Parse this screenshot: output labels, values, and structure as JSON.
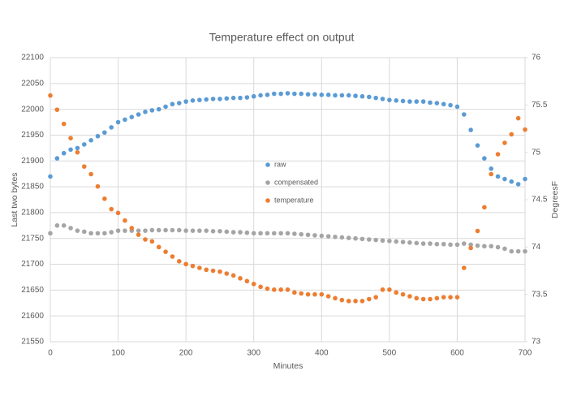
{
  "chart_data": {
    "type": "scatter",
    "title": "Temperature effect on output",
    "x_label": "Minutes",
    "y_label": "Last two bytes",
    "y2_label": "DegreesF",
    "legend": "center",
    "grid": true,
    "xlim": [
      0,
      700
    ],
    "xticks": [
      0,
      100,
      200,
      300,
      400,
      500,
      600,
      700
    ],
    "ylim": [
      21550,
      22100
    ],
    "yticks": [
      21550,
      21600,
      21650,
      21700,
      21750,
      21800,
      21850,
      21900,
      21950,
      22000,
      22050,
      22100
    ],
    "y2lim": [
      73,
      76
    ],
    "y2ticks": [
      73,
      73.5,
      74,
      74.5,
      75,
      75.5,
      76
    ],
    "x": [
      0,
      10,
      20,
      30,
      40,
      50,
      60,
      70,
      80,
      90,
      100,
      110,
      120,
      130,
      140,
      150,
      160,
      170,
      180,
      190,
      200,
      210,
      220,
      230,
      240,
      250,
      260,
      270,
      280,
      290,
      300,
      310,
      320,
      330,
      340,
      350,
      360,
      370,
      380,
      390,
      400,
      410,
      420,
      430,
      440,
      450,
      460,
      470,
      480,
      490,
      500,
      510,
      520,
      530,
      540,
      550,
      560,
      570,
      580,
      590,
      600,
      610,
      620,
      630,
      640,
      650,
      660,
      670,
      680,
      690,
      700
    ],
    "series": [
      {
        "name": "raw",
        "color": "#5b9bd5",
        "values": [
          21870,
          21905,
          21915,
          21922,
          21925,
          21932,
          21940,
          21948,
          21955,
          21965,
          21975,
          21980,
          21985,
          21990,
          21995,
          21998,
          22000,
          22005,
          22010,
          22012,
          22015,
          22017,
          22018,
          22019,
          22020,
          22020,
          22021,
          22022,
          22022,
          22023,
          22025,
          22027,
          22028,
          22030,
          22030,
          22031,
          22030,
          22030,
          22029,
          22029,
          22028,
          22028,
          22027,
          22027,
          22027,
          22026,
          22025,
          22024,
          22022,
          22020,
          22018,
          22017,
          22016,
          22015,
          22015,
          22015,
          22013,
          22012,
          22010,
          22008,
          22005,
          21990,
          21960,
          21930,
          21905,
          21885,
          21870,
          21865,
          21860,
          21855,
          21865
        ]
      },
      {
        "name": "compensated",
        "color": "#a5a5a5",
        "values": [
          21760,
          21775,
          21775,
          21770,
          21765,
          21763,
          21760,
          21760,
          21760,
          21762,
          21765,
          21765,
          21765,
          21765,
          21765,
          21766,
          21766,
          21766,
          21766,
          21766,
          21765,
          21765,
          21765,
          21765,
          21764,
          21764,
          21763,
          21762,
          21762,
          21761,
          21760,
          21760,
          21760,
          21760,
          21760,
          21760,
          21759,
          21758,
          21757,
          21756,
          21755,
          21754,
          21753,
          21752,
          21751,
          21750,
          21749,
          21748,
          21747,
          21746,
          21745,
          21744,
          21743,
          21742,
          21741,
          21740,
          21740,
          21739,
          21739,
          21738,
          21738,
          21740,
          21738,
          21736,
          21735,
          21735,
          21733,
          21730,
          21725,
          21725,
          21725
        ]
      },
      {
        "name": "temperature",
        "color": "#ed7d31",
        "axis": "y2",
        "values": [
          75.6,
          75.45,
          75.3,
          75.15,
          75.0,
          74.85,
          74.77,
          74.64,
          74.51,
          74.4,
          74.36,
          74.28,
          74.2,
          74.13,
          74.08,
          74.06,
          74.0,
          73.95,
          73.9,
          73.85,
          73.82,
          73.8,
          73.78,
          73.76,
          73.75,
          73.74,
          73.72,
          73.7,
          73.67,
          73.64,
          73.61,
          73.58,
          73.56,
          73.55,
          73.55,
          73.55,
          73.52,
          73.51,
          73.5,
          73.5,
          73.5,
          73.48,
          73.46,
          73.44,
          73.43,
          73.43,
          73.43,
          73.45,
          73.47,
          73.55,
          73.55,
          73.52,
          73.5,
          73.48,
          73.46,
          73.45,
          73.45,
          73.46,
          73.47,
          73.47,
          73.47,
          73.78,
          73.99,
          74.17,
          74.42,
          74.77,
          74.98,
          75.1,
          75.19,
          75.36,
          75.24
        ]
      }
    ]
  }
}
